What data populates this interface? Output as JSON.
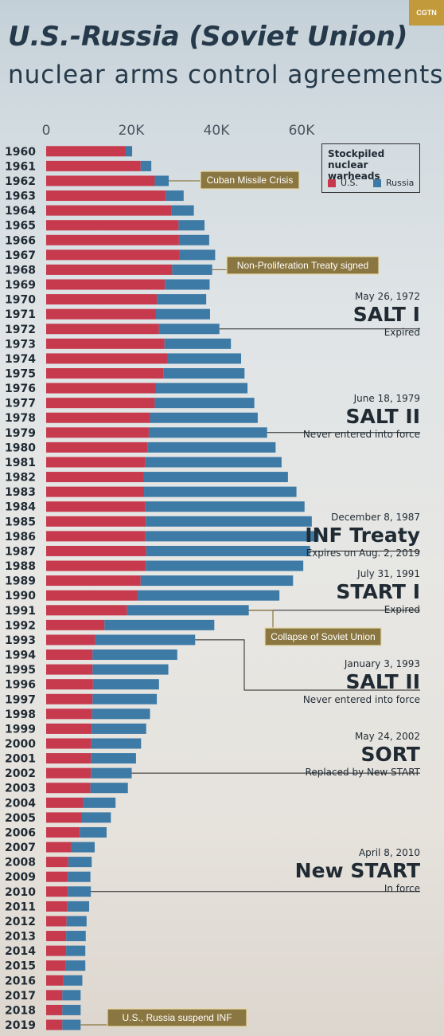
{
  "logo": "CGTN",
  "title_line1": "U.S.-Russia (Soviet Union)",
  "title_line2": "nuclear arms control agreements",
  "legend": {
    "title_line1": "Stockpiled",
    "title_line2": "nuclear warheads",
    "us_label": "U.S.",
    "russia_label": "Russia"
  },
  "colors": {
    "us": "#c73a4e",
    "russia": "#3d7aa6",
    "callout": "#8a7640",
    "callout_border": "#e8d9a8",
    "line": "#222222"
  },
  "chart_data": {
    "type": "bar",
    "orientation": "horizontal",
    "stacked": true,
    "xlim": [
      0,
      65000
    ],
    "x_ticks": [
      0,
      20000,
      40000,
      60000
    ],
    "x_tick_labels": [
      "0",
      "20K",
      "40K",
      "60K"
    ],
    "categories": [
      "1960",
      "1961",
      "1962",
      "1963",
      "1964",
      "1965",
      "1966",
      "1967",
      "1968",
      "1969",
      "1970",
      "1971",
      "1972",
      "1973",
      "1974",
      "1975",
      "1976",
      "1977",
      "1978",
      "1979",
      "1980",
      "1981",
      "1982",
      "1983",
      "1984",
      "1985",
      "1986",
      "1987",
      "1988",
      "1989",
      "1990",
      "1991",
      "1992",
      "1993",
      "1994",
      "1995",
      "1996",
      "1997",
      "1998",
      "1999",
      "2000",
      "2001",
      "2002",
      "2003",
      "2004",
      "2005",
      "2006",
      "2007",
      "2008",
      "2009",
      "2010",
      "2011",
      "2012",
      "2013",
      "2014",
      "2015",
      "2016",
      "2017",
      "2018",
      "2019"
    ],
    "series": [
      {
        "name": "U.S.",
        "values": [
          18600,
          22200,
          25500,
          28100,
          29500,
          31100,
          31200,
          31300,
          29600,
          27900,
          26000,
          25800,
          26500,
          27800,
          28500,
          27500,
          25700,
          25500,
          24400,
          24100,
          23800,
          23300,
          22900,
          23000,
          23300,
          23400,
          23300,
          23500,
          23400,
          22200,
          21400,
          19000,
          13700,
          11500,
          10900,
          10900,
          11000,
          10900,
          10800,
          10700,
          10600,
          10500,
          10500,
          10400,
          8600,
          8400,
          7900,
          5800,
          5200,
          5100,
          5100,
          5000,
          4800,
          4700,
          4700,
          4600,
          4000,
          3800,
          3800,
          3800
        ]
      },
      {
        "name": "Russia",
        "values": [
          1600,
          2500,
          3300,
          4200,
          5200,
          6100,
          7100,
          8400,
          9400,
          10500,
          11600,
          12700,
          14200,
          15600,
          17300,
          19100,
          21600,
          23400,
          25300,
          27800,
          30100,
          32000,
          33900,
          35800,
          37400,
          39000,
          40700,
          38500,
          37000,
          35800,
          33400,
          28600,
          25800,
          23500,
          19900,
          17800,
          15500,
          15100,
          13600,
          12800,
          11700,
          10600,
          9600,
          8800,
          7700,
          6800,
          6300,
          5600,
          5500,
          5300,
          5400,
          5100,
          4700,
          4600,
          4500,
          4600,
          4500,
          4300,
          4300,
          4300
        ]
      }
    ],
    "annotations": [
      {
        "label": "Cuban Missile Crisis",
        "year": "1962"
      },
      {
        "label": "Non-Proliferation Treaty signed",
        "year": "1968"
      },
      {
        "label": "Collapse of Soviet Union",
        "year": "1991"
      },
      {
        "label": "U.S., Russia suspend INF",
        "year": "2019"
      }
    ],
    "legend_position": "top-right",
    "grid": false
  },
  "treaties": [
    {
      "date": "May 26, 1972",
      "name": "SALT I",
      "status": "Expired",
      "year": "1972"
    },
    {
      "date": "June 18, 1979",
      "name": "SALT II",
      "status": "Never entered into force",
      "year": "1979"
    },
    {
      "date": "December 8, 1987",
      "name": "INF Treaty",
      "status": "Expires on Aug. 2, 2019",
      "year": "1987"
    },
    {
      "date": "July 31, 1991",
      "name": "START I",
      "status": "Expired",
      "year": "1991"
    },
    {
      "date": "January 3, 1993",
      "name": "SALT II",
      "status": "Never entered into force",
      "year": "1993"
    },
    {
      "date": "May 24, 2002",
      "name": "SORT",
      "status": "Replaced by New START",
      "year": "2002"
    },
    {
      "date": "April 8, 2010",
      "name": "New START",
      "status": "In force",
      "year": "2010"
    }
  ]
}
